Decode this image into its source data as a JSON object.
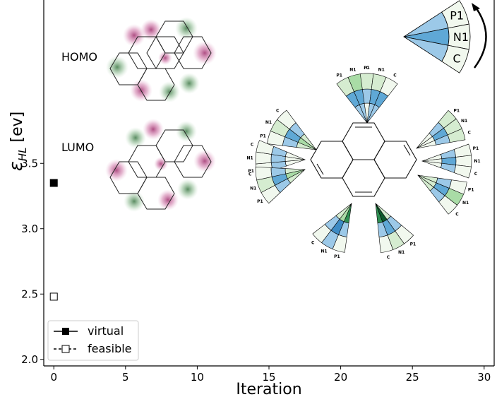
{
  "chart_data": {
    "type": "scatter",
    "xlabel": "Iteration",
    "ylabel": "ε_HL [ev]",
    "xlim": [
      -0.7,
      30.7
    ],
    "ylim": [
      1.95,
      4.75
    ],
    "x_ticks": [
      "0",
      "5",
      "10",
      "15",
      "20",
      "25",
      "30"
    ],
    "y_ticks": [
      "2.0",
      "2.5",
      "3.0",
      "3.5"
    ],
    "series": [
      {
        "name": "virtual",
        "marker": "filled-square",
        "color": "#000000",
        "points": [
          {
            "x": 0,
            "y": 3.35
          }
        ]
      },
      {
        "name": "feasible",
        "marker": "open-square",
        "color": "#000000",
        "points": [
          {
            "x": 0,
            "y": 2.48
          }
        ]
      }
    ],
    "legend": {
      "placement": "bottom-left"
    },
    "grid": false,
    "annotations": {
      "orbital_labels": [
        "HOMO",
        "LUMO"
      ],
      "wedge_key": {
        "rows": [
          "P1",
          "N1",
          "C"
        ]
      },
      "wedge_atom_labels": [
        "P1",
        "N1",
        "C"
      ]
    }
  }
}
